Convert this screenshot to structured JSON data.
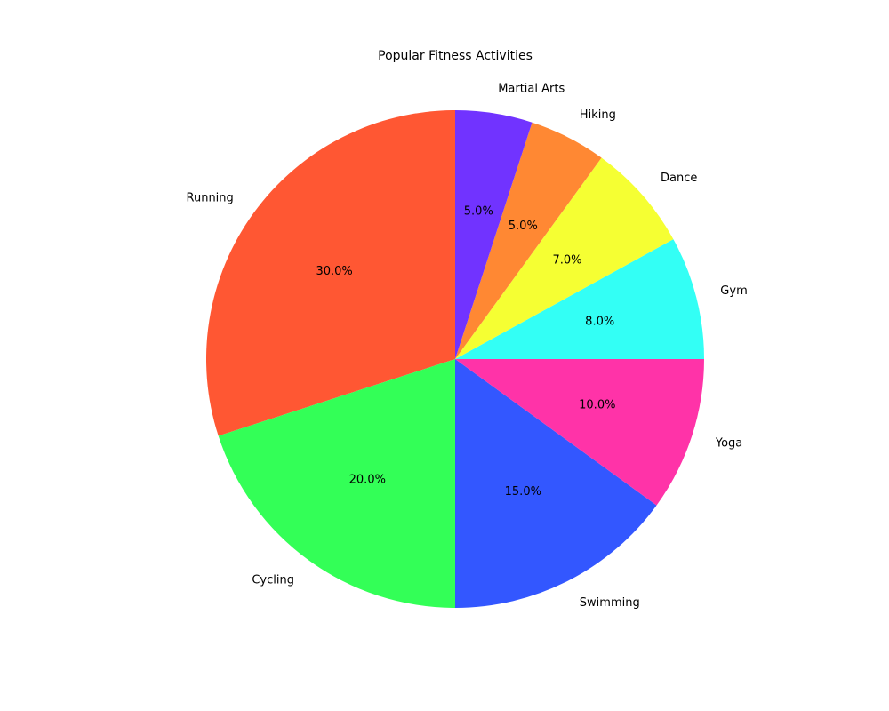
{
  "chart_data": {
    "type": "pie",
    "title": "Popular Fitness Activities",
    "start_angle_deg": 90,
    "direction": "counterclockwise",
    "slices": [
      {
        "label": "Running",
        "value": 30,
        "pct_label": "30.0%",
        "color": "#FF5733"
      },
      {
        "label": "Cycling",
        "value": 20,
        "pct_label": "20.0%",
        "color": "#33FF57"
      },
      {
        "label": "Swimming",
        "value": 15,
        "pct_label": "15.0%",
        "color": "#3357FF"
      },
      {
        "label": "Yoga",
        "value": 10,
        "pct_label": "10.0%",
        "color": "#FF33A8"
      },
      {
        "label": "Gym",
        "value": 8,
        "pct_label": "8.0%",
        "color": "#33FFF5"
      },
      {
        "label": "Dance",
        "value": 7,
        "pct_label": "7.0%",
        "color": "#F5FF33"
      },
      {
        "label": "Hiking",
        "value": 5,
        "pct_label": "5.0%",
        "color": "#FF8833"
      },
      {
        "label": "Martial Arts",
        "value": 5,
        "pct_label": "5.0%",
        "color": "#7133FF"
      }
    ]
  }
}
